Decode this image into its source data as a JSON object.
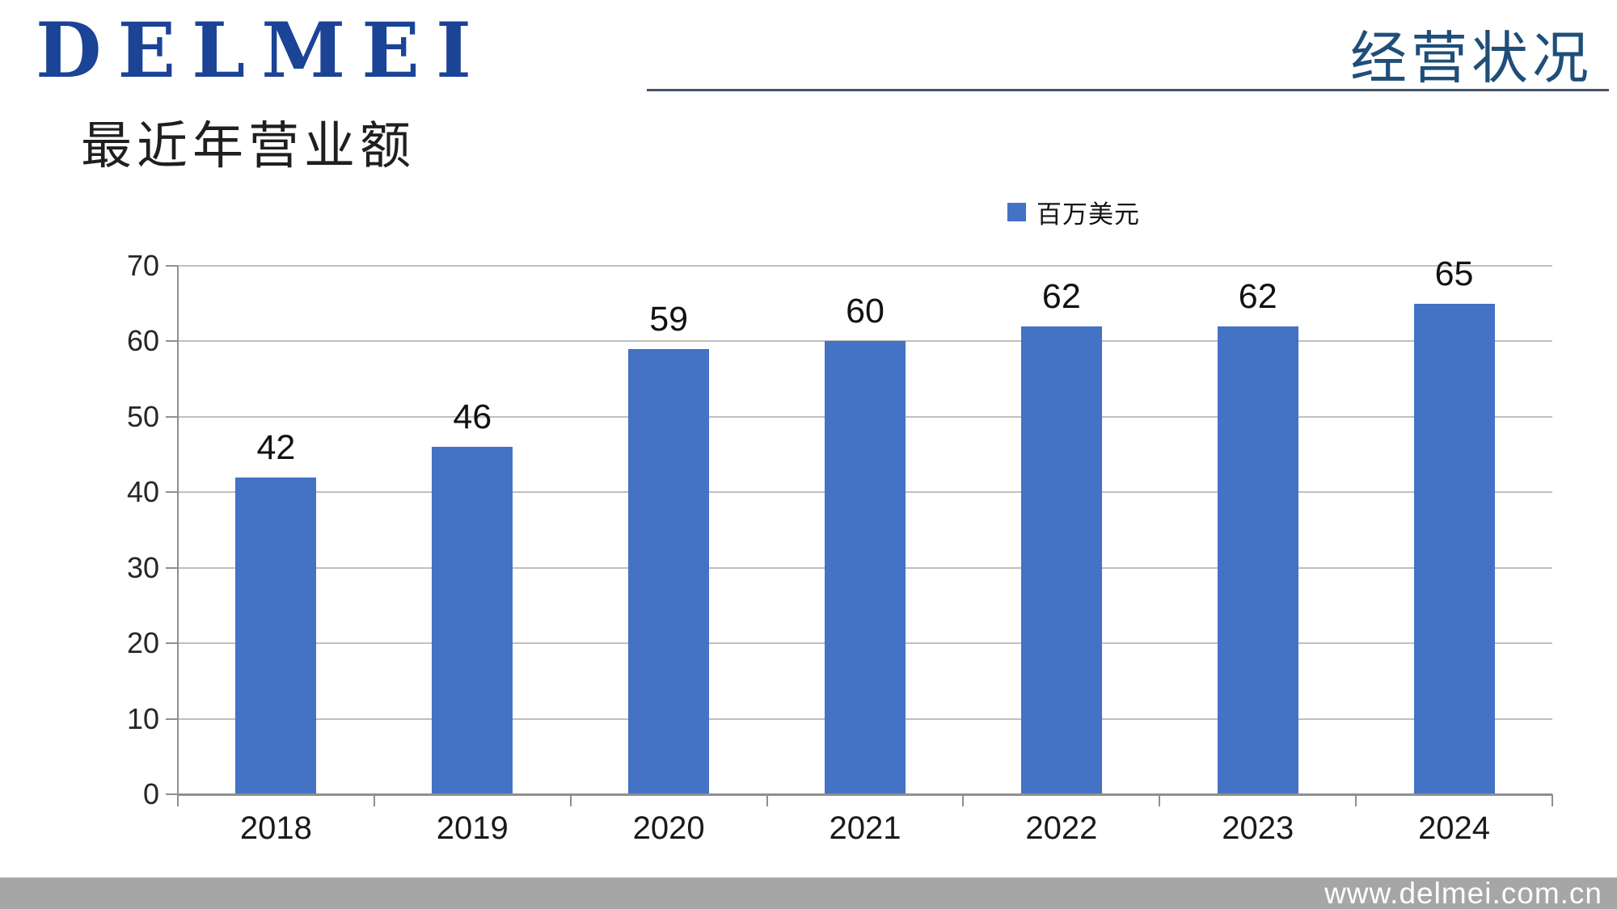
{
  "header": {
    "logo_text": "DELMEI",
    "section_label": "经营状况"
  },
  "page_title": "最近年营业额",
  "legend": {
    "series_label": "百万美元"
  },
  "chart_data": {
    "type": "bar",
    "title": "最近年营业额",
    "categories": [
      "2018",
      "2019",
      "2020",
      "2021",
      "2022",
      "2023",
      "2024"
    ],
    "series": [
      {
        "name": "百万美元",
        "values": [
          42,
          46,
          59,
          60,
          62,
          62,
          65
        ]
      }
    ],
    "data_labels": [
      42,
      46,
      59,
      60,
      62,
      62,
      65
    ],
    "xlabel": "",
    "ylabel": "",
    "ylim": [
      0,
      70
    ],
    "yticks": [
      0,
      10,
      20,
      30,
      40,
      50,
      60,
      70
    ],
    "grid": true,
    "legend_position": "top"
  },
  "footer": {
    "url": "www.delmei.com.cn"
  },
  "colors": {
    "bar": "#4472C4",
    "gridline": "#BFBFBF",
    "axis": "#8F8F8F",
    "brand_logo": "#1B4396",
    "section_label": "#1F4E79",
    "header_rule": "#44546A",
    "footer_background": "#A6A6A6",
    "footer_text": "#FFFFFF",
    "text": "#1A1A1A"
  }
}
